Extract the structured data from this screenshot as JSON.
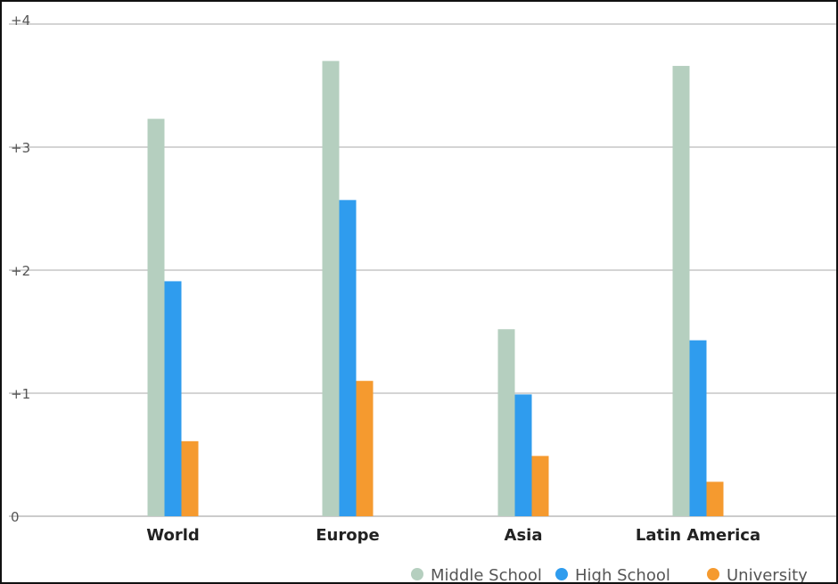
{
  "chart_data": {
    "type": "bar",
    "title": "",
    "xlabel": "",
    "ylabel": "",
    "categories": [
      "World",
      "Europe",
      "Asia",
      "Latin America"
    ],
    "series": [
      {
        "name": "Middle School",
        "color": "#b5cfbf",
        "values": [
          3.23,
          3.7,
          1.52,
          3.66
        ]
      },
      {
        "name": "High School",
        "color": "#2f9cee",
        "values": [
          1.91,
          2.57,
          0.99,
          1.43
        ]
      },
      {
        "name": "University",
        "color": "#f59a2f",
        "values": [
          0.61,
          1.1,
          0.49,
          0.28
        ]
      }
    ],
    "ylim": [
      0,
      4
    ],
    "yticks": [
      0,
      1,
      2,
      3,
      4
    ],
    "ytick_labels": [
      "0",
      "+1",
      "+2",
      "+3",
      "+4"
    ],
    "grid": true,
    "legend_position": "bottom-right"
  }
}
